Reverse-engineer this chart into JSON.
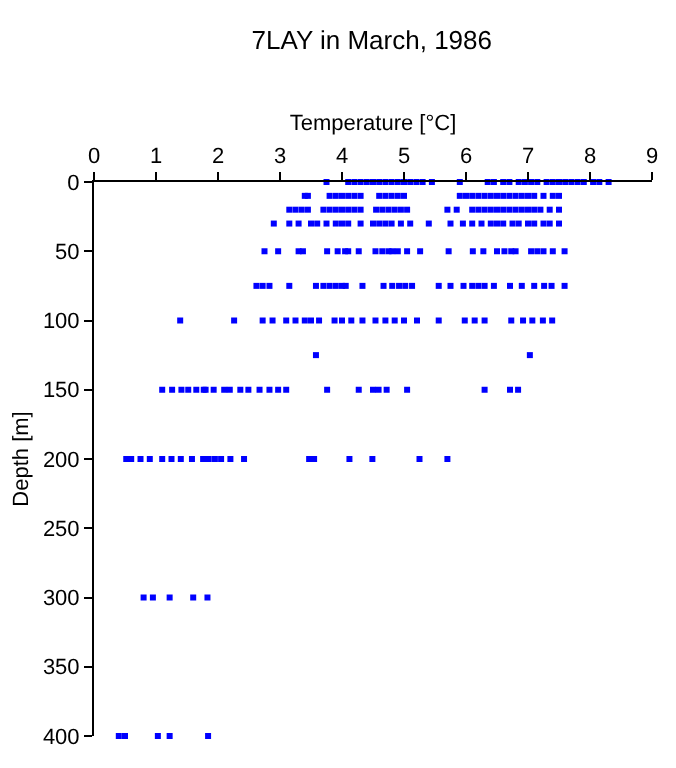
{
  "chart_data": {
    "type": "scatter",
    "title": "7LAY in March, 1986",
    "xlabel": "Temperature [°C]",
    "ylabel": "Depth [m]",
    "xlim": [
      0,
      9
    ],
    "xticks": [
      0,
      1,
      2,
      3,
      4,
      5,
      6,
      7,
      8,
      9
    ],
    "ylim": [
      400,
      0
    ],
    "yticks": [
      0,
      50,
      100,
      150,
      200,
      250,
      300,
      350,
      400
    ],
    "marker": "square",
    "series": [
      {
        "color": "#0000ff",
        "x": [
          3.75,
          4.1,
          4.2,
          4.3,
          4.4,
          4.5,
          4.6,
          4.7,
          4.8,
          4.9,
          5.0,
          5.1,
          5.2,
          5.3,
          5.45,
          5.9,
          6.35,
          6.45,
          6.6,
          6.7,
          6.85,
          6.95,
          7.05,
          7.15,
          7.3,
          7.4,
          7.5,
          7.6,
          7.7,
          7.8,
          7.9,
          8.05,
          8.15,
          8.3,
          3.4,
          3.45,
          3.8,
          3.9,
          4.0,
          4.1,
          4.2,
          4.3,
          4.6,
          4.7,
          4.8,
          4.9,
          5.0,
          5.9,
          6.0,
          6.1,
          6.2,
          6.3,
          6.4,
          6.5,
          6.6,
          6.7,
          6.8,
          6.9,
          7.0,
          7.1,
          7.25,
          7.4,
          7.5,
          3.15,
          3.25,
          3.35,
          3.45,
          3.7,
          3.8,
          3.9,
          4.0,
          4.1,
          4.2,
          4.3,
          4.55,
          4.65,
          4.75,
          4.85,
          4.95,
          5.05,
          5.7,
          5.85,
          6.1,
          6.2,
          6.3,
          6.4,
          6.5,
          6.6,
          6.7,
          6.8,
          6.9,
          7.0,
          7.1,
          7.2,
          7.35,
          7.5,
          2.9,
          3.15,
          3.3,
          3.5,
          3.6,
          3.75,
          3.9,
          4.0,
          4.1,
          4.3,
          4.5,
          4.6,
          4.7,
          4.8,
          4.95,
          5.1,
          5.4,
          5.75,
          5.95,
          6.1,
          6.25,
          6.4,
          6.5,
          6.6,
          6.75,
          6.85,
          7.0,
          7.1,
          7.25,
          7.35,
          7.5,
          2.75,
          2.97,
          3.3,
          3.37,
          3.76,
          3.93,
          4.05,
          4.1,
          4.27,
          4.54,
          4.65,
          4.75,
          4.81,
          4.9,
          5.05,
          5.26,
          5.72,
          6.11,
          6.28,
          6.5,
          6.62,
          6.73,
          6.8,
          7.05,
          7.15,
          7.25,
          7.4,
          7.59,
          2.62,
          2.72,
          2.83,
          3.15,
          3.58,
          3.7,
          3.8,
          3.9,
          4.0,
          4.06,
          4.33,
          4.67,
          4.81,
          4.92,
          5.02,
          5.13,
          5.56,
          5.75,
          5.96,
          6.1,
          6.2,
          6.3,
          6.45,
          6.71,
          6.9,
          7.1,
          7.26,
          7.38,
          7.59,
          1.39,
          2.26,
          2.72,
          2.88,
          3.1,
          3.25,
          3.4,
          3.5,
          3.63,
          3.88,
          4.0,
          4.15,
          4.33,
          4.54,
          4.7,
          4.85,
          5.0,
          5.21,
          5.56,
          5.98,
          6.14,
          6.3,
          6.73,
          6.92,
          7.07,
          7.24,
          7.39,
          3.58,
          7.03,
          1.1,
          1.26,
          1.41,
          1.52,
          1.65,
          1.77,
          1.8,
          1.93,
          2.1,
          2.19,
          2.36,
          2.49,
          2.67,
          2.83,
          2.97,
          3.1,
          3.76,
          4.27,
          4.5,
          4.59,
          4.72,
          5.05,
          6.3,
          6.71,
          6.84,
          0.52,
          0.6,
          0.75,
          0.9,
          1.1,
          1.25,
          1.4,
          1.58,
          1.76,
          1.85,
          1.95,
          2.05,
          2.2,
          2.42,
          3.47,
          3.55,
          4.12,
          4.49,
          5.25,
          5.7,
          0.8,
          0.95,
          1.22,
          1.6,
          1.83,
          0.4,
          0.5,
          1.03,
          1.22,
          1.84
        ],
        "values": [
          0,
          0,
          0,
          0,
          0,
          0,
          0,
          0,
          0,
          0,
          0,
          0,
          0,
          0,
          0,
          0,
          0,
          0,
          0,
          0,
          0,
          0,
          0,
          0,
          0,
          0,
          0,
          0,
          0,
          0,
          0,
          0,
          0,
          0,
          10,
          10,
          10,
          10,
          10,
          10,
          10,
          10,
          10,
          10,
          10,
          10,
          10,
          10,
          10,
          10,
          10,
          10,
          10,
          10,
          10,
          10,
          10,
          10,
          10,
          10,
          10,
          10,
          10,
          20,
          20,
          20,
          20,
          20,
          20,
          20,
          20,
          20,
          20,
          20,
          20,
          20,
          20,
          20,
          20,
          20,
          20,
          20,
          20,
          20,
          20,
          20,
          20,
          20,
          20,
          20,
          20,
          20,
          20,
          20,
          20,
          20,
          30,
          30,
          30,
          30,
          30,
          30,
          30,
          30,
          30,
          30,
          30,
          30,
          30,
          30,
          30,
          30,
          30,
          30,
          30,
          30,
          30,
          30,
          30,
          30,
          30,
          30,
          30,
          30,
          30,
          30,
          30,
          50,
          50,
          50,
          50,
          50,
          50,
          50,
          50,
          50,
          50,
          50,
          50,
          50,
          50,
          50,
          50,
          50,
          50,
          50,
          50,
          50,
          50,
          50,
          50,
          50,
          50,
          50,
          50,
          75,
          75,
          75,
          75,
          75,
          75,
          75,
          75,
          75,
          75,
          75,
          75,
          75,
          75,
          75,
          75,
          75,
          75,
          75,
          75,
          75,
          75,
          75,
          75,
          75,
          75,
          75,
          75,
          75,
          100,
          100,
          100,
          100,
          100,
          100,
          100,
          100,
          100,
          100,
          100,
          100,
          100,
          100,
          100,
          100,
          100,
          100,
          100,
          100,
          100,
          100,
          100,
          100,
          100,
          100,
          100,
          125,
          125,
          150,
          150,
          150,
          150,
          150,
          150,
          150,
          150,
          150,
          150,
          150,
          150,
          150,
          150,
          150,
          150,
          150,
          150,
          150,
          150,
          150,
          150,
          150,
          150,
          150,
          200,
          200,
          200,
          200,
          200,
          200,
          200,
          200,
          200,
          200,
          200,
          200,
          200,
          200,
          200,
          200,
          200,
          200,
          200,
          200,
          300,
          300,
          300,
          300,
          300,
          400,
          400,
          400,
          400,
          400
        ]
      }
    ]
  }
}
